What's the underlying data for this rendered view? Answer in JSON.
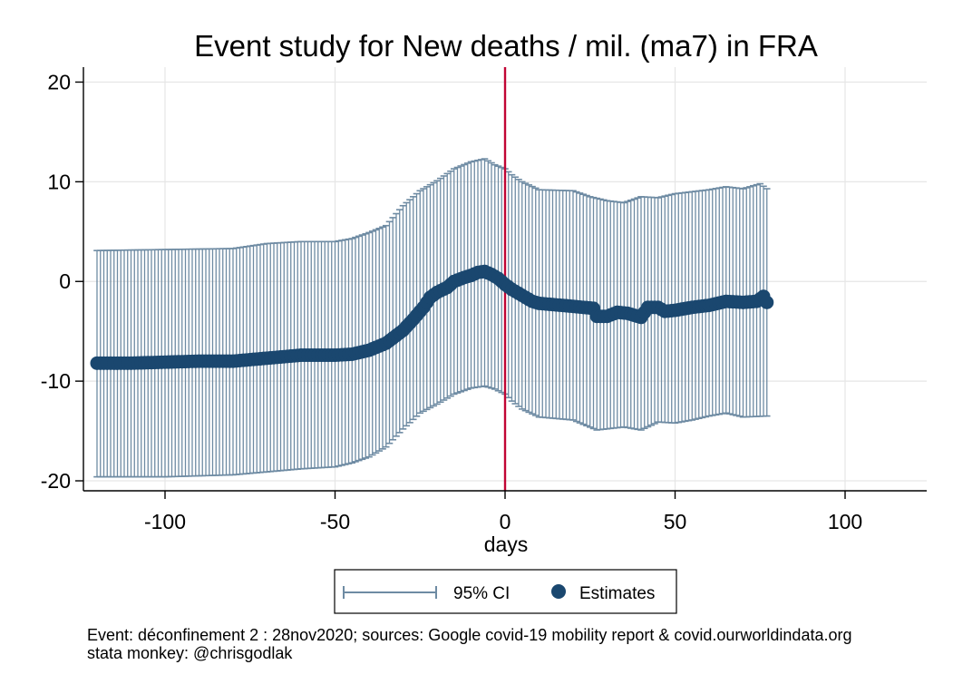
{
  "chart_data": {
    "type": "scatter",
    "title": "Event study for New deaths / mil. (ma7) in FRA",
    "xlabel": "days",
    "ylabel": "",
    "xlim": [
      -124,
      124
    ],
    "ylim": [
      -21,
      21.5
    ],
    "x_ticks": [
      -100,
      -50,
      0,
      50,
      100
    ],
    "x_tick_labels": [
      "-100",
      "-50",
      "0",
      "50",
      "100"
    ],
    "y_ticks": [
      -20,
      -10,
      0,
      10,
      20
    ],
    "y_tick_labels": [
      "-20",
      "-10",
      "0",
      "10",
      "20"
    ],
    "grid": true,
    "event_line_x": 0,
    "legend_position": "bottom",
    "colors": {
      "estimates": "#1a476f",
      "ci": "#6e8ba3",
      "event_line": "#c10534",
      "grid": "#e6e6e6",
      "axis": "#000000"
    },
    "series": [
      {
        "name": "95% CI",
        "kind": "error-bar",
        "x_range": [
          -120,
          77
        ],
        "lower_knots": [
          [
            -120,
            -19.6
          ],
          [
            -100,
            -19.6
          ],
          [
            -80,
            -19.4
          ],
          [
            -60,
            -18.8
          ],
          [
            -50,
            -18.6
          ],
          [
            -45,
            -18.2
          ],
          [
            -40,
            -17.6
          ],
          [
            -35,
            -16.6
          ],
          [
            -30,
            -14.8
          ],
          [
            -25,
            -13.2
          ],
          [
            -20,
            -12.3
          ],
          [
            -15,
            -11.3
          ],
          [
            -10,
            -10.7
          ],
          [
            -6,
            -10.5
          ],
          [
            -3,
            -10.8
          ],
          [
            0,
            -11.3
          ],
          [
            2,
            -12.0
          ],
          [
            5,
            -12.8
          ],
          [
            10,
            -13.6
          ],
          [
            20,
            -13.9
          ],
          [
            27,
            -14.9
          ],
          [
            35,
            -14.6
          ],
          [
            40,
            -14.9
          ],
          [
            45,
            -14.1
          ],
          [
            50,
            -14.2
          ],
          [
            55,
            -13.9
          ],
          [
            60,
            -13.5
          ],
          [
            65,
            -13.2
          ],
          [
            70,
            -13.6
          ],
          [
            77,
            -13.5
          ]
        ],
        "upper_knots": [
          [
            -120,
            3.1
          ],
          [
            -100,
            3.2
          ],
          [
            -80,
            3.3
          ],
          [
            -70,
            3.8
          ],
          [
            -60,
            4.0
          ],
          [
            -50,
            4.0
          ],
          [
            -45,
            4.3
          ],
          [
            -40,
            4.9
          ],
          [
            -35,
            5.6
          ],
          [
            -30,
            7.6
          ],
          [
            -25,
            9.1
          ],
          [
            -20,
            10.1
          ],
          [
            -15,
            11.3
          ],
          [
            -10,
            12.0
          ],
          [
            -6,
            12.3
          ],
          [
            -3,
            11.7
          ],
          [
            0,
            11.3
          ],
          [
            2,
            10.7
          ],
          [
            5,
            10.0
          ],
          [
            10,
            9.2
          ],
          [
            20,
            9.1
          ],
          [
            25,
            8.5
          ],
          [
            30,
            8.1
          ],
          [
            35,
            7.9
          ],
          [
            40,
            8.5
          ],
          [
            45,
            8.4
          ],
          [
            50,
            8.8
          ],
          [
            60,
            9.2
          ],
          [
            65,
            9.5
          ],
          [
            70,
            9.3
          ],
          [
            75,
            9.8
          ],
          [
            77,
            9.3
          ]
        ]
      },
      {
        "name": "Estimates",
        "kind": "points",
        "x_range": [
          -120,
          77
        ],
        "knots": [
          [
            -120,
            -8.2
          ],
          [
            -110,
            -8.2
          ],
          [
            -100,
            -8.1
          ],
          [
            -90,
            -8.0
          ],
          [
            -80,
            -8.0
          ],
          [
            -70,
            -7.7
          ],
          [
            -60,
            -7.4
          ],
          [
            -50,
            -7.4
          ],
          [
            -45,
            -7.3
          ],
          [
            -40,
            -6.9
          ],
          [
            -35,
            -6.2
          ],
          [
            -30,
            -4.9
          ],
          [
            -27,
            -3.8
          ],
          [
            -24,
            -2.6
          ],
          [
            -22,
            -1.6
          ],
          [
            -20,
            -1.1
          ],
          [
            -17,
            -0.6
          ],
          [
            -15,
            0.0
          ],
          [
            -12,
            0.4
          ],
          [
            -10,
            0.6
          ],
          [
            -8,
            0.9
          ],
          [
            -6,
            1.0
          ],
          [
            -4,
            0.7
          ],
          [
            -2,
            0.3
          ],
          [
            0,
            -0.3
          ],
          [
            2,
            -0.8
          ],
          [
            5,
            -1.4
          ],
          [
            8,
            -2.0
          ],
          [
            10,
            -2.2
          ],
          [
            20,
            -2.5
          ],
          [
            26,
            -2.7
          ],
          [
            27,
            -3.5
          ],
          [
            30,
            -3.5
          ],
          [
            33,
            -3.1
          ],
          [
            36,
            -3.2
          ],
          [
            40,
            -3.6
          ],
          [
            42,
            -2.6
          ],
          [
            45,
            -2.6
          ],
          [
            47,
            -3.0
          ],
          [
            50,
            -2.9
          ],
          [
            55,
            -2.6
          ],
          [
            60,
            -2.4
          ],
          [
            65,
            -2.0
          ],
          [
            70,
            -2.1
          ],
          [
            74,
            -2.0
          ],
          [
            76,
            -1.5
          ],
          [
            77,
            -2.1
          ]
        ]
      }
    ]
  },
  "legend": {
    "ci_label": "95% CI",
    "estimates_label": "Estimates"
  },
  "notes": {
    "line1": "Event: déconfinement 2 : 28nov2020; sources: Google covid-19 mobility report & covid.ourworldindata.org",
    "line2": "stata monkey: @chrisgodlak"
  }
}
